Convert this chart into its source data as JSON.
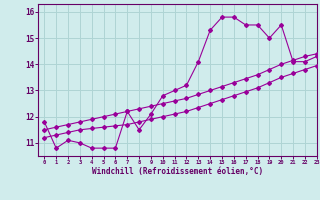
{
  "x": [
    0,
    1,
    2,
    3,
    4,
    5,
    6,
    7,
    8,
    9,
    10,
    11,
    12,
    13,
    14,
    15,
    16,
    17,
    18,
    19,
    20,
    21,
    22,
    23
  ],
  "line1": [
    11.8,
    10.8,
    11.1,
    11.0,
    10.8,
    10.8,
    10.8,
    12.2,
    11.5,
    12.1,
    12.8,
    13.0,
    13.2,
    14.1,
    15.3,
    15.8,
    15.8,
    15.5,
    15.5,
    15.0,
    15.5,
    14.1,
    14.1,
    14.3
  ],
  "line2": [
    11.5,
    11.6,
    11.7,
    11.8,
    11.9,
    12.0,
    12.1,
    12.2,
    12.3,
    12.4,
    12.5,
    12.6,
    12.7,
    12.85,
    13.0,
    13.15,
    13.3,
    13.45,
    13.6,
    13.8,
    14.0,
    14.15,
    14.3,
    14.4
  ],
  "line3": [
    11.2,
    11.3,
    11.4,
    11.5,
    11.55,
    11.6,
    11.65,
    11.7,
    11.8,
    11.9,
    12.0,
    12.1,
    12.2,
    12.35,
    12.5,
    12.65,
    12.8,
    12.95,
    13.1,
    13.3,
    13.5,
    13.65,
    13.8,
    13.95
  ],
  "line_color": "#990099",
  "bg_color": "#d0ecec",
  "grid_color": "#aed4d4",
  "axis_color": "#660066",
  "xlabel": "Windchill (Refroidissement éolien,°C)",
  "ylim": [
    10.5,
    16.3
  ],
  "xlim": [
    -0.5,
    23
  ],
  "yticks": [
    11,
    12,
    13,
    14,
    15,
    16
  ],
  "xticks": [
    0,
    1,
    2,
    3,
    4,
    5,
    6,
    7,
    8,
    9,
    10,
    11,
    12,
    13,
    14,
    15,
    16,
    17,
    18,
    19,
    20,
    21,
    22,
    23
  ]
}
